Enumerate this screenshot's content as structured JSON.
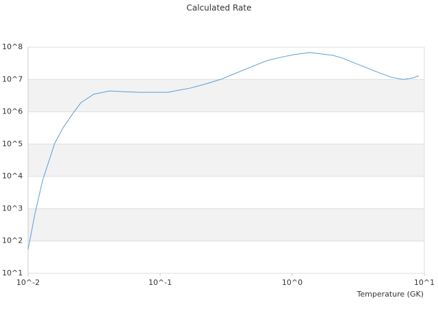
{
  "chart_data": {
    "type": "line",
    "title": "Calculated Rate",
    "x_label": "Temperature (GK)",
    "xscale": "log",
    "yscale": "log",
    "grid": true,
    "xlim": [
      0.01,
      10
    ],
    "ylim": [
      10,
      100000000
    ],
    "xticks": [
      {
        "value": 0.01,
        "label": "10^-2"
      },
      {
        "value": 0.1,
        "label": "10^-1"
      },
      {
        "value": 1,
        "label": "10^0"
      },
      {
        "value": 10,
        "label": "10^1"
      }
    ],
    "yticks": [
      {
        "value": 10,
        "label": "10^1"
      },
      {
        "value": 100,
        "label": "10^2"
      },
      {
        "value": 1000,
        "label": "10^3"
      },
      {
        "value": 10000,
        "label": "10^4"
      },
      {
        "value": 100000,
        "label": "10^5"
      },
      {
        "value": 1000000,
        "label": "10^6"
      },
      {
        "value": 10000000,
        "label": "10^7"
      },
      {
        "value": 100000000,
        "label": "10^8"
      }
    ],
    "x": [
      0.01,
      0.0113,
      0.01285,
      0.0159,
      0.0184,
      0.022,
      0.0251,
      0.0314,
      0.0414,
      0.0524,
      0.0708,
      0.114,
      0.136,
      0.169,
      0.22,
      0.286,
      0.376,
      0.507,
      0.64,
      0.81,
      1.03,
      1.36,
      2.02,
      2.4,
      3.03,
      3.4,
      4.24,
      5.63,
      6.9,
      8.2,
      9.08
    ],
    "series": [
      {
        "name": "Rate",
        "color": "#5b9bd5",
        "values": [
          55,
          724,
          7200,
          105000,
          320000,
          930000,
          1900000,
          3500000,
          4400000,
          4200000,
          4000000,
          4000000,
          4600000,
          5400000,
          7200000,
          10000000,
          15800000,
          26000000,
          38000000,
          48000000,
          59000000,
          68000000,
          56000000,
          46000000,
          31000000,
          26000000,
          18000000,
          11700000,
          10000000,
          11200000,
          13000000
        ]
      }
    ]
  }
}
